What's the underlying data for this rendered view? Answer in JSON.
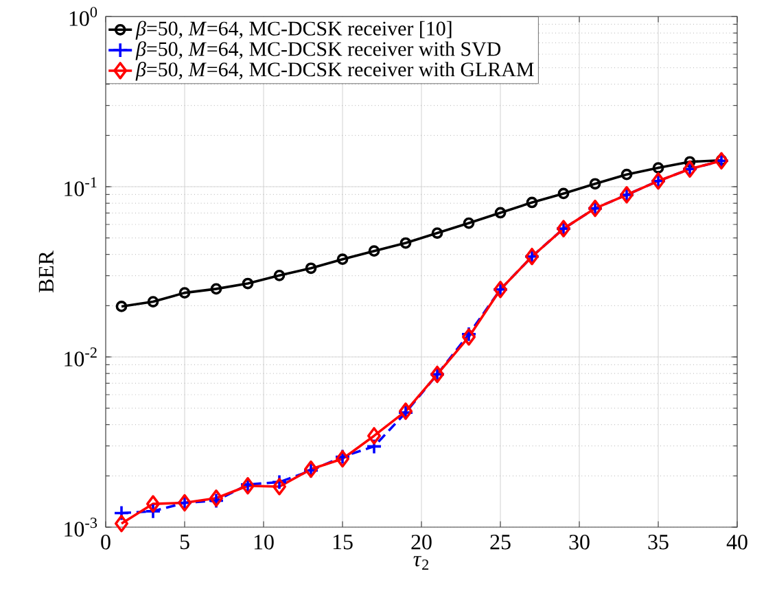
{
  "chart_data": {
    "type": "line",
    "xlabel": "*τ*$_{2}$",
    "ylabel": "BER",
    "log": "y",
    "grid": true,
    "legend": "top left",
    "xlim": [
      0,
      40
    ],
    "xticks": [
      0,
      5,
      10,
      15,
      20,
      25,
      30,
      35,
      40
    ],
    "ylim": [
      0.001,
      1
    ],
    "yticks": [
      {
        "value": 0.001,
        "label": "10$^{-3}$"
      },
      {
        "value": 0.01,
        "label": "10$^{-2}$"
      },
      {
        "value": 0.1,
        "label": "10$^{-1}$"
      },
      {
        "value": 1,
        "label": "10$^{0}$"
      }
    ],
    "x": [
      1,
      3,
      5,
      7,
      9,
      11,
      13,
      15,
      17,
      19,
      21,
      23,
      25,
      27,
      29,
      31,
      33,
      35,
      37,
      39
    ],
    "series": [
      {
        "name": "*β*=50,  *M*=64, MC-DCSK receiver [10]",
        "color": "#000000",
        "marker": "circle",
        "line_style": "solid",
        "values": [
          0.0198,
          0.0211,
          0.0238,
          0.0251,
          0.027,
          0.0301,
          0.0332,
          0.0375,
          0.0419,
          0.0467,
          0.0534,
          0.0611,
          0.0703,
          0.0808,
          0.0912,
          0.104,
          0.118,
          0.129,
          0.14,
          0.143
        ]
      },
      {
        "name": "*β*=50,  *M*=64, MC-DCSK receiver with SVD",
        "color": "#0000ff",
        "marker": "cross",
        "line_style": "dashed",
        "values": [
          0.00121,
          0.00124,
          0.00139,
          0.00143,
          0.00178,
          0.00184,
          0.00215,
          0.00259,
          0.00298,
          0.00471,
          0.0079,
          0.0136,
          0.0249,
          0.0389,
          0.0567,
          0.0746,
          0.0896,
          0.108,
          0.127,
          0.142
        ]
      },
      {
        "name": "*β*=50,  *M*=64, MC-DCSK receiver with GLRAM",
        "color": "#ff0000",
        "marker": "diamond",
        "line_style": "solid",
        "values": [
          0.00105,
          0.00137,
          0.00139,
          0.00148,
          0.00175,
          0.00173,
          0.00219,
          0.00252,
          0.00344,
          0.0048,
          0.0079,
          0.0131,
          0.0249,
          0.0389,
          0.0567,
          0.0746,
          0.0896,
          0.108,
          0.127,
          0.142
        ]
      }
    ]
  }
}
